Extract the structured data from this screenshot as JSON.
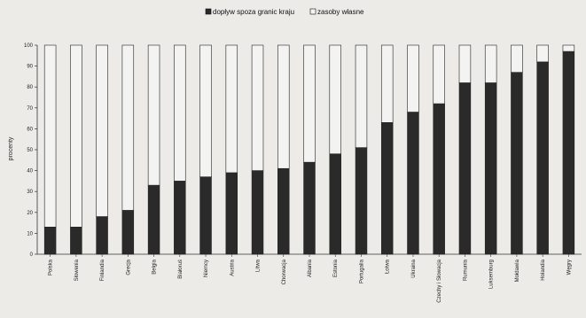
{
  "chart_data": {
    "type": "bar",
    "stacked": true,
    "percent": true,
    "ylabel": "procenty",
    "ylim": [
      0,
      100
    ],
    "yticks": [
      0,
      10,
      20,
      30,
      40,
      50,
      60,
      70,
      80,
      90,
      100
    ],
    "legend_position": "top-center",
    "categories": [
      "Polska",
      "Słowenia",
      "Finlandia",
      "Grecja",
      "Belgia",
      "Białoruś",
      "Niemcy",
      "Austria",
      "Litwa",
      "Chorwacja",
      "Albania",
      "Estonia",
      "Portugalia",
      "Łotwa",
      "Ukraina",
      "Czechy i Słowacja",
      "Rumunia",
      "Luksemburg",
      "Mołdawia",
      "Holandia",
      "Węgry"
    ],
    "series": [
      {
        "name": "dopływ spoza granic kraju",
        "color": "#2a2a2a",
        "values": [
          13,
          13,
          18,
          21,
          33,
          35,
          37,
          39,
          40,
          41,
          44,
          48,
          51,
          63,
          68,
          72,
          82,
          82,
          87,
          92,
          97
        ]
      },
      {
        "name": "zasoby własne",
        "color": "#f3f3f1",
        "values": [
          87,
          87,
          82,
          79,
          67,
          65,
          63,
          61,
          60,
          59,
          56,
          52,
          49,
          37,
          32,
          28,
          18,
          18,
          13,
          8,
          3
        ]
      }
    ]
  }
}
